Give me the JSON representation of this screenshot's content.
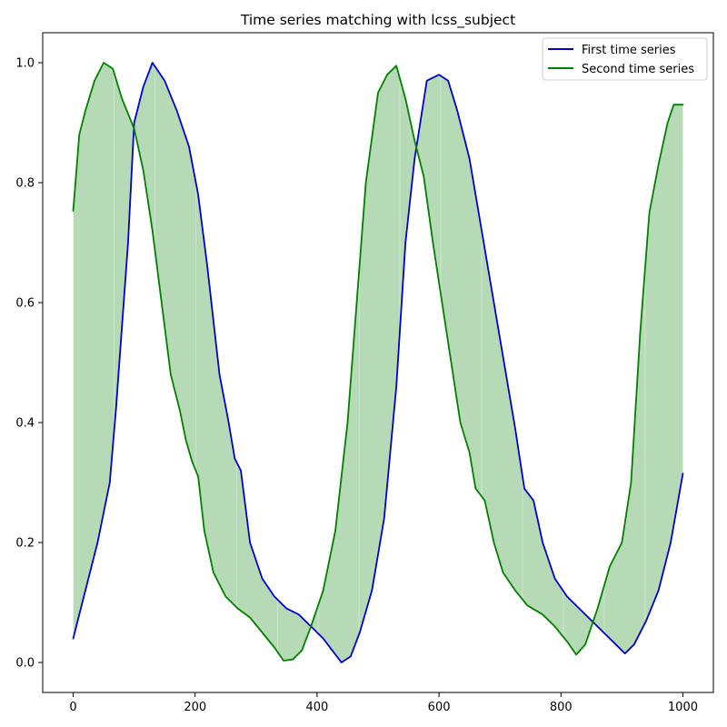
{
  "chart_data": {
    "type": "line",
    "title": "Time series matching with lcss_subject",
    "xlabel": "",
    "ylabel": "",
    "xlim": [
      -50,
      1050
    ],
    "ylim": [
      -0.05,
      1.05
    ],
    "x_ticks": [
      0,
      200,
      400,
      600,
      800,
      1000
    ],
    "x_tick_labels": [
      "0",
      "200",
      "400",
      "600",
      "800",
      "1000"
    ],
    "y_ticks": [
      0.0,
      0.2,
      0.4,
      0.6,
      0.8,
      1.0
    ],
    "y_tick_labels": [
      "0.0",
      "0.2",
      "0.4",
      "0.6",
      "0.8",
      "1.0"
    ],
    "grid": false,
    "legend_position": "top-right",
    "fill_between": {
      "color": "#b6d9b6",
      "description_color": "green-translucent"
    },
    "series": [
      {
        "name": "First time series",
        "color": "#0000cc",
        "points": [
          [
            0,
            0.04
          ],
          [
            20,
            0.12
          ],
          [
            40,
            0.2
          ],
          [
            60,
            0.3
          ],
          [
            70,
            0.42
          ],
          [
            80,
            0.56
          ],
          [
            90,
            0.7
          ],
          [
            100,
            0.9
          ],
          [
            115,
            0.96
          ],
          [
            130,
            1.0
          ],
          [
            150,
            0.97
          ],
          [
            170,
            0.92
          ],
          [
            190,
            0.86
          ],
          [
            205,
            0.78
          ],
          [
            220,
            0.66
          ],
          [
            240,
            0.48
          ],
          [
            255,
            0.4
          ],
          [
            265,
            0.34
          ],
          [
            275,
            0.32
          ],
          [
            290,
            0.2
          ],
          [
            310,
            0.14
          ],
          [
            330,
            0.11
          ],
          [
            350,
            0.09
          ],
          [
            370,
            0.08
          ],
          [
            390,
            0.06
          ],
          [
            410,
            0.04
          ],
          [
            425,
            0.02
          ],
          [
            440,
            0.0
          ],
          [
            455,
            0.01
          ],
          [
            470,
            0.05
          ],
          [
            490,
            0.12
          ],
          [
            510,
            0.24
          ],
          [
            530,
            0.46
          ],
          [
            545,
            0.7
          ],
          [
            560,
            0.84
          ],
          [
            580,
            0.97
          ],
          [
            600,
            0.98
          ],
          [
            615,
            0.97
          ],
          [
            630,
            0.92
          ],
          [
            650,
            0.84
          ],
          [
            670,
            0.72
          ],
          [
            690,
            0.6
          ],
          [
            710,
            0.48
          ],
          [
            725,
            0.39
          ],
          [
            740,
            0.29
          ],
          [
            755,
            0.27
          ],
          [
            770,
            0.2
          ],
          [
            790,
            0.14
          ],
          [
            810,
            0.11
          ],
          [
            830,
            0.09
          ],
          [
            850,
            0.07
          ],
          [
            870,
            0.05
          ],
          [
            890,
            0.03
          ],
          [
            905,
            0.015
          ],
          [
            920,
            0.03
          ],
          [
            940,
            0.07
          ],
          [
            960,
            0.12
          ],
          [
            980,
            0.2
          ],
          [
            1000,
            0.315
          ]
        ]
      },
      {
        "name": "Second time series",
        "color": "#008000",
        "points": [
          [
            0,
            0.753
          ],
          [
            10,
            0.88
          ],
          [
            20,
            0.92
          ],
          [
            35,
            0.97
          ],
          [
            50,
            1.0
          ],
          [
            65,
            0.99
          ],
          [
            80,
            0.94
          ],
          [
            100,
            0.89
          ],
          [
            115,
            0.82
          ],
          [
            130,
            0.72
          ],
          [
            145,
            0.6
          ],
          [
            160,
            0.48
          ],
          [
            175,
            0.42
          ],
          [
            185,
            0.37
          ],
          [
            195,
            0.335
          ],
          [
            205,
            0.31
          ],
          [
            215,
            0.22
          ],
          [
            230,
            0.15
          ],
          [
            250,
            0.11
          ],
          [
            270,
            0.09
          ],
          [
            290,
            0.075
          ],
          [
            310,
            0.05
          ],
          [
            330,
            0.025
          ],
          [
            345,
            0.003
          ],
          [
            360,
            0.005
          ],
          [
            375,
            0.02
          ],
          [
            390,
            0.06
          ],
          [
            410,
            0.12
          ],
          [
            430,
            0.22
          ],
          [
            450,
            0.4
          ],
          [
            465,
            0.6
          ],
          [
            480,
            0.8
          ],
          [
            500,
            0.95
          ],
          [
            515,
            0.98
          ],
          [
            530,
            0.995
          ],
          [
            545,
            0.94
          ],
          [
            560,
            0.87
          ],
          [
            575,
            0.81
          ],
          [
            590,
            0.7
          ],
          [
            605,
            0.6
          ],
          [
            620,
            0.5
          ],
          [
            635,
            0.4
          ],
          [
            650,
            0.35
          ],
          [
            660,
            0.29
          ],
          [
            675,
            0.27
          ],
          [
            690,
            0.2
          ],
          [
            705,
            0.15
          ],
          [
            725,
            0.12
          ],
          [
            745,
            0.095
          ],
          [
            770,
            0.08
          ],
          [
            790,
            0.06
          ],
          [
            810,
            0.035
          ],
          [
            825,
            0.013
          ],
          [
            840,
            0.03
          ],
          [
            860,
            0.09
          ],
          [
            880,
            0.16
          ],
          [
            900,
            0.2
          ],
          [
            915,
            0.3
          ],
          [
            930,
            0.55
          ],
          [
            945,
            0.75
          ],
          [
            960,
            0.83
          ],
          [
            975,
            0.9
          ],
          [
            985,
            0.93
          ],
          [
            1000,
            0.93
          ]
        ]
      }
    ]
  }
}
